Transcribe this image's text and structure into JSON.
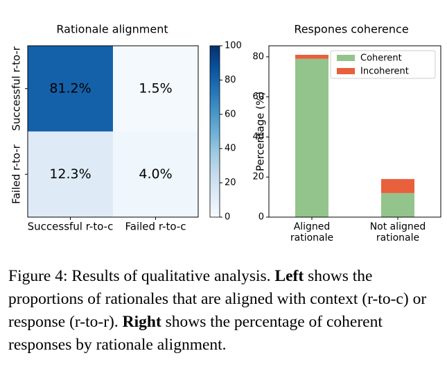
{
  "chart_data": [
    {
      "type": "heatmap",
      "title": "Rationale alignment",
      "rows": [
        "Successful r-to-r",
        "Failed r-to-r"
      ],
      "columns": [
        "Successful r-to-c",
        "Failed r-to-c"
      ],
      "values": [
        [
          81.2,
          1.5
        ],
        [
          12.3,
          4.0
        ]
      ],
      "value_labels": [
        [
          "81.2%",
          "1.5%"
        ],
        [
          "12.3%",
          "4.0%"
        ]
      ],
      "colormap": "Blues",
      "clim": [
        0,
        100
      ],
      "cticks": [
        0,
        20,
        40,
        60,
        80,
        100
      ]
    },
    {
      "type": "stacked_bar",
      "title": "Respones coherence",
      "categories": [
        "Aligned rationale",
        "Not aligned rationale"
      ],
      "series": [
        {
          "name": "Coherent",
          "color": "#93c48b",
          "values": [
            79,
            12
          ]
        },
        {
          "name": "Incoherent",
          "color": "#e8603c",
          "values": [
            2,
            7
          ]
        }
      ],
      "ylabel": "Percentage (%)",
      "ylim": [
        0,
        85.5
      ],
      "yticks": [
        0,
        20,
        40,
        60,
        80
      ],
      "legend": "upper right"
    }
  ],
  "caption": [
    {
      "text": "Figure 4: Results of qualitative analysis. ",
      "bold": false
    },
    {
      "text": "Left",
      "bold": true
    },
    {
      "text": " shows the proportions of rationales that are aligned with context (r-to-c) or response (r-to-r). ",
      "bold": false
    },
    {
      "text": "Right",
      "bold": true
    },
    {
      "text": " shows the percentage of coherent responses by rationale alignment.",
      "bold": false
    }
  ]
}
